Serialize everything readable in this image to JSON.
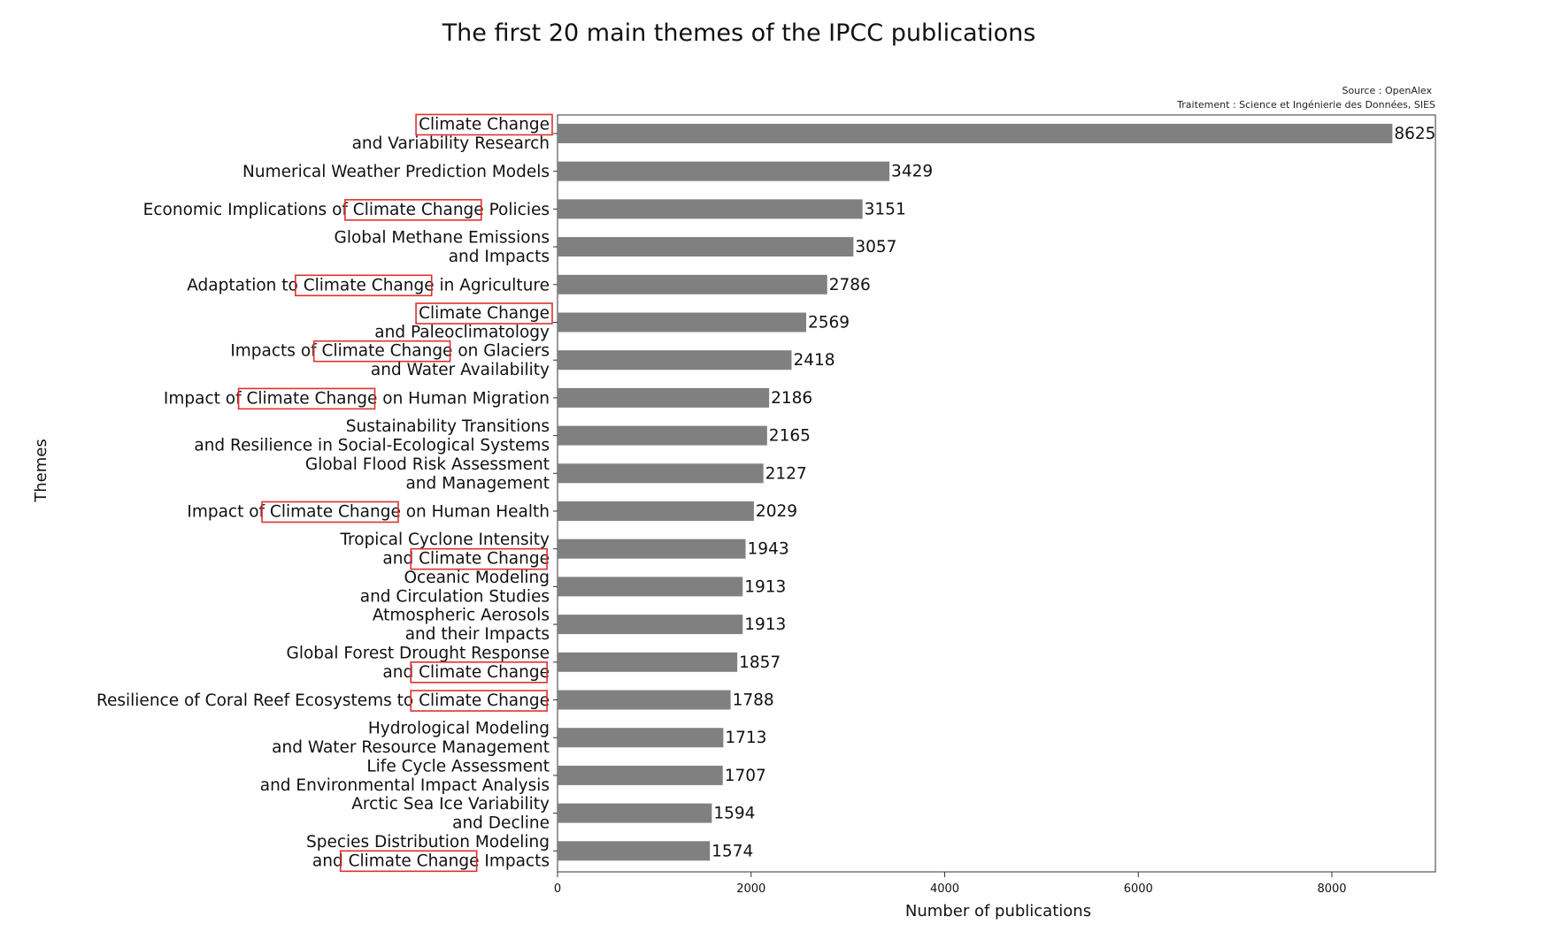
{
  "chart_data": {
    "type": "bar",
    "orientation": "horizontal",
    "title": "The first 20 main themes of the IPCC publications",
    "source_line1": "Source : OpenAlex",
    "source_line2": "Traitement : Science et Ingénierie des Données, SIES",
    "xlabel": "Number of publications",
    "ylabel": "Themes",
    "xlim": [
      0,
      9000
    ],
    "xticks": [
      "0",
      "2000",
      "4000",
      "6000",
      "8000"
    ],
    "xtick_values": [
      0,
      2000,
      4000,
      6000,
      8000
    ],
    "highlight_phrase": "Climate Change",
    "highlight_color": "#e03030",
    "bar_color": "#808080",
    "categories": [
      {
        "lines": [
          "Climate Change",
          "and Variability Research"
        ],
        "value": 8625
      },
      {
        "lines": [
          "Numerical Weather Prediction Models"
        ],
        "value": 3429
      },
      {
        "lines": [
          "Economic Implications of Climate Change Policies"
        ],
        "value": 3151
      },
      {
        "lines": [
          "Global Methane Emissions",
          "and Impacts"
        ],
        "value": 3057
      },
      {
        "lines": [
          "Adaptation to Climate Change in Agriculture"
        ],
        "value": 2786
      },
      {
        "lines": [
          "Climate Change",
          "and Paleoclimatology"
        ],
        "value": 2569
      },
      {
        "lines": [
          "Impacts of Climate Change on Glaciers",
          "and Water Availability"
        ],
        "value": 2418
      },
      {
        "lines": [
          "Impact of Climate Change on Human Migration"
        ],
        "value": 2186
      },
      {
        "lines": [
          "Sustainability Transitions",
          "and Resilience in Social-Ecological Systems"
        ],
        "value": 2165
      },
      {
        "lines": [
          "Global Flood Risk Assessment",
          "and Management"
        ],
        "value": 2127
      },
      {
        "lines": [
          "Impact of Climate Change on Human Health"
        ],
        "value": 2029
      },
      {
        "lines": [
          "Tropical Cyclone Intensity",
          "and Climate Change"
        ],
        "value": 1943
      },
      {
        "lines": [
          "Oceanic Modeling",
          "and Circulation Studies"
        ],
        "value": 1913
      },
      {
        "lines": [
          "Atmospheric Aerosols",
          "and their Impacts"
        ],
        "value": 1913
      },
      {
        "lines": [
          "Global Forest Drought Response",
          "and Climate Change"
        ],
        "value": 1857
      },
      {
        "lines": [
          "Resilience of Coral Reef Ecosystems to Climate Change"
        ],
        "value": 1788
      },
      {
        "lines": [
          "Hydrological Modeling",
          "and Water Resource Management"
        ],
        "value": 1713
      },
      {
        "lines": [
          "Life Cycle Assessment",
          "and Environmental Impact Analysis"
        ],
        "value": 1707
      },
      {
        "lines": [
          "Arctic Sea Ice Variability",
          "and Decline"
        ],
        "value": 1594
      },
      {
        "lines": [
          "Species Distribution Modeling",
          "and Climate Change Impacts"
        ],
        "value": 1574
      }
    ]
  }
}
